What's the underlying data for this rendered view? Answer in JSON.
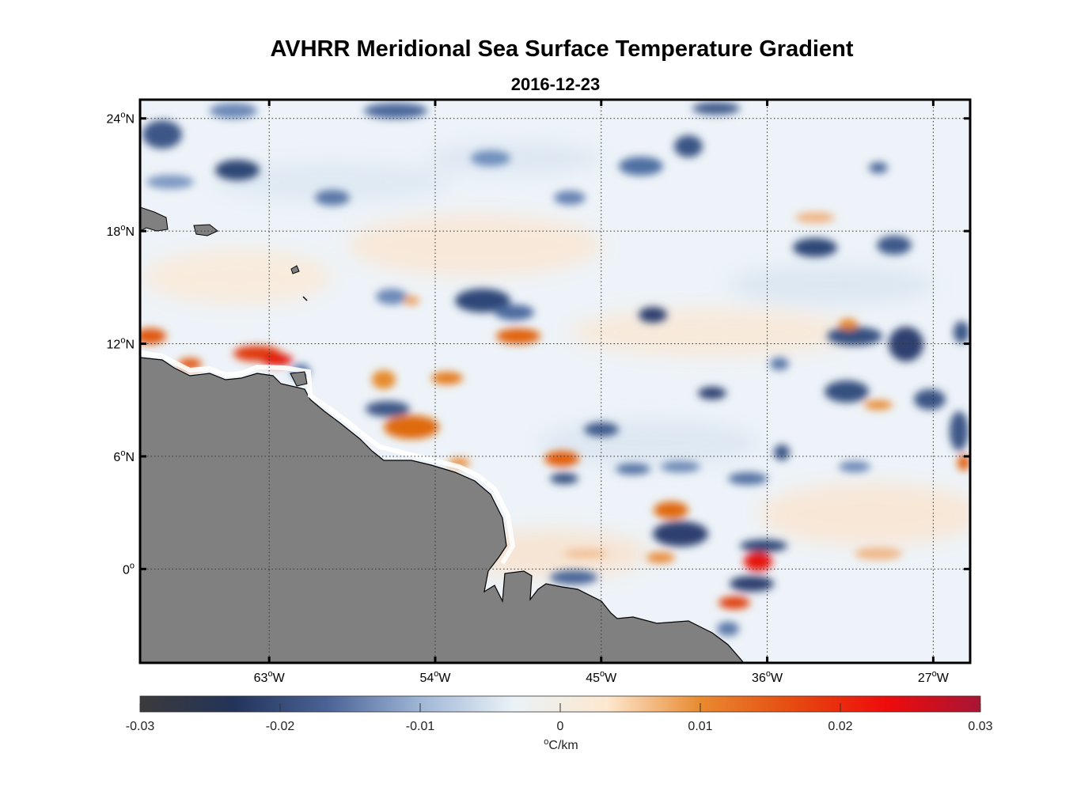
{
  "title": "AVHRR Meridional Sea Surface Temperature Gradient",
  "subtitle": "2016-12-23",
  "map": {
    "lon_range": [
      -70,
      -25
    ],
    "lat_range": [
      -5,
      25
    ],
    "lat_ticks": [
      {
        "value": 24,
        "label": "24",
        "sup": "o",
        "hemi": "N"
      },
      {
        "value": 18,
        "label": "18",
        "sup": "o",
        "hemi": "N"
      },
      {
        "value": 12,
        "label": "12",
        "sup": "o",
        "hemi": "N"
      },
      {
        "value": 6,
        "label": "6",
        "sup": "o",
        "hemi": "N"
      },
      {
        "value": 0,
        "label": "0",
        "sup": "o",
        "hemi": ""
      }
    ],
    "lon_ticks": [
      {
        "value": -63,
        "label": "63",
        "sup": "o",
        "hemi": "W"
      },
      {
        "value": -54,
        "label": "54",
        "sup": "o",
        "hemi": "W"
      },
      {
        "value": -45,
        "label": "45",
        "sup": "o",
        "hemi": "W"
      },
      {
        "value": -36,
        "label": "36",
        "sup": "o",
        "hemi": "W"
      },
      {
        "value": -27,
        "label": "27",
        "sup": "o",
        "hemi": "W"
      }
    ],
    "land_color": "#808080",
    "grid_style": "dotted"
  },
  "colorbar": {
    "min": -0.03,
    "max": 0.03,
    "ticks": [
      "-0.03",
      "-0.02",
      "-0.01",
      "0",
      "0.01",
      "0.02",
      "0.03"
    ],
    "units_sup": "o",
    "units": "C/km",
    "colors": [
      "#3a3a3a",
      "#23345a",
      "#4a6295",
      "#9fb6d6",
      "#eaf2f7",
      "#fde8d0",
      "#e88a30",
      "#e64a10",
      "#ee0b0b",
      "#a81535"
    ]
  }
}
